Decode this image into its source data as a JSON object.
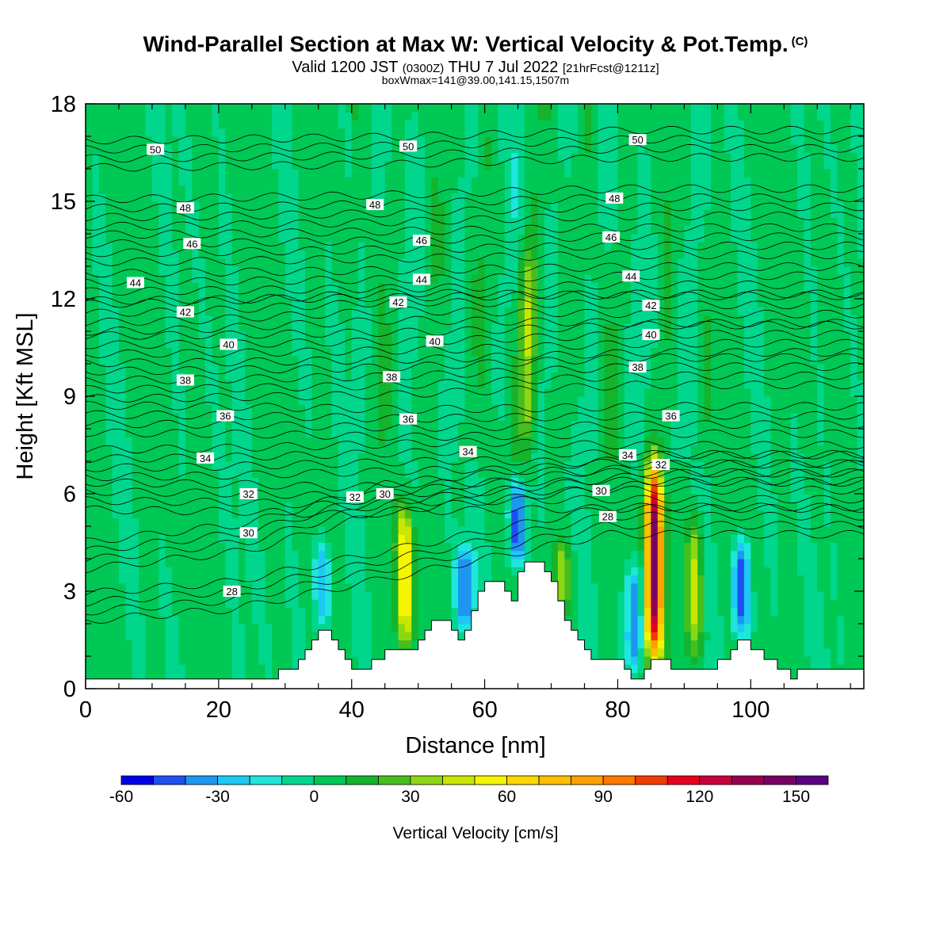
{
  "header": {
    "title": "Wind-Parallel Section at Max W: Vertical Velocity & Pot.Temp.",
    "copyright": "(C)",
    "valid_a": "Valid 1200 JST",
    "valid_b": "(0300Z)",
    "valid_c": "THU 7 Jul 2022",
    "valid_d": "[21hrFcst@1211z]",
    "box_info": "boxWmax=141@39.00,141.15,1507m"
  },
  "chart_data": {
    "type": "heatmap",
    "xlabel": "Distance [nm]",
    "ylabel": "Height [Kft MSL]",
    "xlim": [
      0,
      117
    ],
    "ylim": [
      0,
      18
    ],
    "x_ticks": [
      0,
      20,
      40,
      60,
      80,
      100
    ],
    "y_ticks": [
      0,
      3,
      6,
      9,
      12,
      15,
      18
    ],
    "colorbar": {
      "label": "Vertical Velocity [cm/s]",
      "min": -60,
      "max": 160,
      "step": 10,
      "tick_values": [
        -60,
        -30,
        0,
        30,
        60,
        90,
        120,
        150
      ],
      "colors": [
        "#0000e6",
        "#1e4ff0",
        "#1e96f0",
        "#1ec8f5",
        "#1ee6dc",
        "#00d78c",
        "#00c855",
        "#14b42d",
        "#46be1e",
        "#8cd714",
        "#c8e600",
        "#f5f500",
        "#ffd700",
        "#ffbe00",
        "#ffa000",
        "#ff7800",
        "#f03c00",
        "#e6001e",
        "#c8003c",
        "#960050",
        "#780064",
        "#5a0082"
      ]
    },
    "terrain_kft": [
      [
        0,
        0.3
      ],
      [
        29,
        0.3
      ],
      [
        29,
        0.6
      ],
      [
        32,
        0.6
      ],
      [
        32,
        0.9
      ],
      [
        33,
        0.9
      ],
      [
        33,
        1.2
      ],
      [
        34,
        1.2
      ],
      [
        34,
        1.5
      ],
      [
        35,
        1.5
      ],
      [
        35,
        1.8
      ],
      [
        37,
        1.8
      ],
      [
        37,
        1.5
      ],
      [
        38,
        1.5
      ],
      [
        38,
        1.2
      ],
      [
        39,
        1.2
      ],
      [
        39,
        0.9
      ],
      [
        40,
        0.9
      ],
      [
        40,
        0.6
      ],
      [
        43,
        0.6
      ],
      [
        43,
        0.9
      ],
      [
        45,
        0.9
      ],
      [
        45,
        1.2
      ],
      [
        50,
        1.2
      ],
      [
        50,
        1.5
      ],
      [
        51,
        1.5
      ],
      [
        51,
        1.8
      ],
      [
        52,
        1.8
      ],
      [
        52,
        2.1
      ],
      [
        55,
        2.1
      ],
      [
        55,
        1.8
      ],
      [
        56,
        1.8
      ],
      [
        56,
        1.5
      ],
      [
        57,
        1.5
      ],
      [
        57,
        1.8
      ],
      [
        58,
        1.8
      ],
      [
        58,
        2.4
      ],
      [
        59,
        2.4
      ],
      [
        59,
        3.0
      ],
      [
        60,
        3.0
      ],
      [
        60,
        3.3
      ],
      [
        63,
        3.3
      ],
      [
        63,
        3.0
      ],
      [
        64,
        3.0
      ],
      [
        64,
        2.7
      ],
      [
        65,
        2.7
      ],
      [
        65,
        3.6
      ],
      [
        66,
        3.6
      ],
      [
        66,
        3.9
      ],
      [
        69,
        3.9
      ],
      [
        69,
        3.6
      ],
      [
        70,
        3.6
      ],
      [
        70,
        3.3
      ],
      [
        71,
        3.3
      ],
      [
        71,
        2.7
      ],
      [
        72,
        2.7
      ],
      [
        72,
        2.1
      ],
      [
        73,
        2.1
      ],
      [
        73,
        1.8
      ],
      [
        74,
        1.8
      ],
      [
        74,
        1.5
      ],
      [
        75,
        1.5
      ],
      [
        75,
        1.2
      ],
      [
        76,
        1.2
      ],
      [
        76,
        0.9
      ],
      [
        81,
        0.9
      ],
      [
        81,
        0.6
      ],
      [
        82,
        0.6
      ],
      [
        82,
        0.3
      ],
      [
        84,
        0.3
      ],
      [
        84,
        0.6
      ],
      [
        85,
        0.6
      ],
      [
        85,
        0.9
      ],
      [
        88,
        0.9
      ],
      [
        88,
        0.6
      ],
      [
        95,
        0.6
      ],
      [
        95,
        0.9
      ],
      [
        97,
        0.9
      ],
      [
        97,
        1.2
      ],
      [
        98,
        1.2
      ],
      [
        98,
        1.5
      ],
      [
        100,
        1.5
      ],
      [
        100,
        1.2
      ],
      [
        102,
        1.2
      ],
      [
        102,
        0.9
      ],
      [
        104,
        0.9
      ],
      [
        104,
        0.6
      ],
      [
        106,
        0.6
      ],
      [
        106,
        0.3
      ],
      [
        107,
        0.3
      ],
      [
        107,
        0.6
      ],
      [
        117,
        0.6
      ]
    ],
    "w_features": [
      {
        "x": 48,
        "y_bottom": 1.4,
        "y_top": 5.5,
        "w_max": 60
      },
      {
        "x": 66.5,
        "y_bottom": 7.5,
        "y_top": 13.5,
        "w_max": 40
      },
      {
        "x": 85.5,
        "y_bottom": 0.9,
        "y_top": 6.8,
        "w_max": 141
      },
      {
        "x": 91.5,
        "y_bottom": 1.0,
        "y_top": 5.2,
        "w_max": 40
      },
      {
        "x": 71.5,
        "y_bottom": 2.5,
        "y_top": 4.5,
        "w_max": 30
      },
      {
        "x": 65,
        "y_bottom": 3.9,
        "y_top": 6.3,
        "w_max": -50
      },
      {
        "x": 57,
        "y_bottom": 1.8,
        "y_top": 4.5,
        "w_max": -40
      },
      {
        "x": 82.5,
        "y_bottom": 0.6,
        "y_top": 3.8,
        "w_max": -45
      },
      {
        "x": 98.5,
        "y_bottom": 1.6,
        "y_top": 4.5,
        "w_max": -50
      },
      {
        "x": 35.5,
        "y_bottom": 1.8,
        "y_top": 4.5,
        "w_max": -30
      }
    ],
    "theta_contours": [
      {
        "level": 50,
        "label_x": [
          10.5,
          48.5,
          83
        ],
        "label_y": [
          16.6,
          16.7,
          16.9
        ]
      },
      {
        "level": 48,
        "label_x": [
          15,
          43.5,
          79.5
        ],
        "label_y": [
          14.8,
          14.9,
          15.1
        ]
      },
      {
        "level": 46,
        "label_x": [
          16,
          50.5,
          79
        ],
        "label_y": [
          13.7,
          13.8,
          13.9
        ]
      },
      {
        "level": 44,
        "label_x": [
          7.5,
          50.5,
          82
        ],
        "label_y": [
          12.5,
          12.6,
          12.7
        ]
      },
      {
        "level": 42,
        "label_x": [
          15,
          47,
          85
        ],
        "label_y": [
          11.6,
          11.9,
          11.8
        ]
      },
      {
        "level": 40,
        "label_x": [
          21.5,
          52.5,
          85
        ],
        "label_y": [
          10.6,
          10.7,
          10.9
        ]
      },
      {
        "level": 38,
        "label_x": [
          15,
          46,
          83
        ],
        "label_y": [
          9.5,
          9.6,
          9.9
        ]
      },
      {
        "level": 36,
        "label_x": [
          21,
          48.5,
          88
        ],
        "label_y": [
          8.4,
          8.3,
          8.4
        ]
      },
      {
        "level": 34,
        "label_x": [
          18,
          57.5,
          81.5
        ],
        "label_y": [
          7.1,
          7.3,
          7.2
        ]
      },
      {
        "level": 32,
        "label_x": [
          24.5,
          40.5,
          86.5
        ],
        "label_y": [
          6.0,
          5.9,
          6.9
        ]
      },
      {
        "level": 30,
        "label_x": [
          24.5,
          45,
          77.5
        ],
        "label_y": [
          4.8,
          6.0,
          6.1
        ]
      },
      {
        "level": 28,
        "label_x": [
          22,
          78.5
        ],
        "label_y": [
          3.0,
          5.3
        ]
      }
    ]
  }
}
